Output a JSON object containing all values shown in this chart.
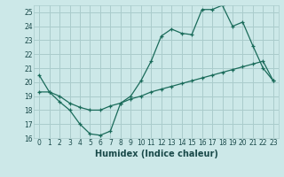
{
  "title": "",
  "xlabel": "Humidex (Indice chaleur)",
  "background_color": "#cce8e8",
  "grid_color": "#aacccc",
  "line_color": "#1a6b5a",
  "xlim": [
    -0.5,
    23.5
  ],
  "ylim": [
    16,
    25.5
  ],
  "yticks": [
    16,
    17,
    18,
    19,
    20,
    21,
    22,
    23,
    24,
    25
  ],
  "xticks": [
    0,
    1,
    2,
    3,
    4,
    5,
    6,
    7,
    8,
    9,
    10,
    11,
    12,
    13,
    14,
    15,
    16,
    17,
    18,
    19,
    20,
    21,
    22,
    23
  ],
  "series1_x": [
    0,
    1,
    2,
    3,
    4,
    5,
    6,
    7,
    8,
    9,
    10,
    11,
    12,
    13,
    14,
    15,
    16,
    17,
    18,
    19,
    20,
    21,
    22,
    23
  ],
  "series1_y": [
    20.5,
    19.3,
    18.6,
    18.0,
    17.0,
    16.3,
    16.2,
    16.5,
    18.5,
    19.0,
    20.1,
    21.5,
    23.3,
    23.8,
    23.5,
    23.4,
    25.2,
    25.2,
    25.5,
    24.0,
    24.3,
    22.6,
    21.0,
    20.1
  ],
  "series2_x": [
    0,
    1,
    2,
    3,
    4,
    5,
    6,
    7,
    8,
    9,
    10,
    11,
    12,
    13,
    14,
    15,
    16,
    17,
    18,
    19,
    20,
    21,
    22,
    23
  ],
  "series2_y": [
    19.3,
    19.3,
    19.0,
    18.5,
    18.2,
    18.0,
    18.0,
    18.3,
    18.5,
    18.8,
    19.0,
    19.3,
    19.5,
    19.7,
    19.9,
    20.1,
    20.3,
    20.5,
    20.7,
    20.9,
    21.1,
    21.3,
    21.5,
    20.1
  ],
  "tick_fontsize": 5.5,
  "xlabel_fontsize": 7
}
